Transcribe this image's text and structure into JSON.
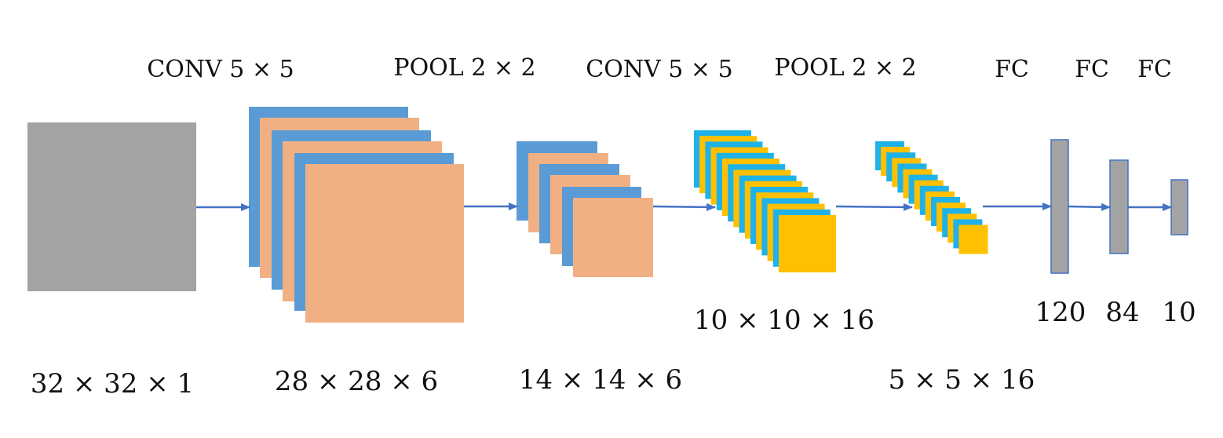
{
  "colors": {
    "input_gray": "#a3a3a3",
    "map_blue": "#5b9bd5",
    "map_peach": "#f0b083",
    "map_cyan": "#1fb2e8",
    "map_yellow": "#ffc000",
    "fc_gray": "#a3a3a3",
    "fc_border": "#4472c4",
    "arrow": "#4472c4"
  },
  "operations": [
    {
      "id": "conv1",
      "label": "CONV 5 × 5"
    },
    {
      "id": "pool1",
      "label": "POOL 2 × 2"
    },
    {
      "id": "conv2",
      "label": "CONV 5 × 5"
    },
    {
      "id": "pool2",
      "label": "POOL 2 × 2"
    },
    {
      "id": "fc1",
      "label": "FC"
    },
    {
      "id": "fc2",
      "label": "FC"
    },
    {
      "id": "fc3",
      "label": "FC"
    }
  ],
  "layers": [
    {
      "id": "input",
      "dims": "32 × 32 × 1",
      "maps": 1
    },
    {
      "id": "conv1-out",
      "dims": "28 × 28 × 6",
      "maps": 6
    },
    {
      "id": "pool1-out",
      "dims": "14 × 14 × 6",
      "maps": 6
    },
    {
      "id": "conv2-out",
      "dims": "10 × 10 × 16",
      "maps": 16
    },
    {
      "id": "pool2-out",
      "dims": "5 × 5 × 16",
      "maps": 16
    }
  ],
  "fc_layers": [
    {
      "id": "fc-120",
      "units": "120"
    },
    {
      "id": "fc-84",
      "units": "84"
    },
    {
      "id": "fc-10",
      "units": "10"
    }
  ]
}
